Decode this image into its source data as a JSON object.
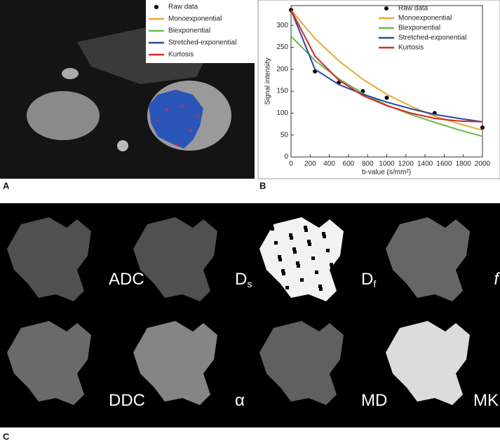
{
  "chart_data": {
    "type": "line",
    "xlabel": "b-value (s/mm²)",
    "ylabel": "Signal intensity",
    "xlim": [
      0,
      2000
    ],
    "ylim": [
      0,
      345
    ],
    "xticks": [
      0,
      200,
      400,
      600,
      800,
      1000,
      1200,
      1400,
      1600,
      1800,
      2000
    ],
    "yticks": [
      0,
      50,
      100,
      150,
      200,
      250,
      300
    ],
    "legend": "upper right",
    "series": [
      {
        "name": "Raw data",
        "color": "#000000",
        "mode": "markers",
        "x": [
          0,
          250,
          500,
          750,
          1000,
          1500,
          2000
        ],
        "values": [
          335,
          195,
          170,
          150,
          135,
          100,
          67
        ]
      },
      {
        "name": "Monoexponential",
        "color": "#e8a830",
        "mode": "lines",
        "x": [
          0,
          250,
          500,
          750,
          1000,
          1250,
          1500,
          1750,
          2000
        ],
        "values": [
          335,
          270,
          219,
          177,
          143,
          116,
          93,
          76,
          61
        ]
      },
      {
        "name": "Biexponential",
        "color": "#6ab84a",
        "mode": "lines",
        "x": [
          0,
          250,
          500,
          750,
          1000,
          1250,
          1500,
          1750,
          2000
        ],
        "values": [
          275,
          220,
          178,
          145,
          118,
          97,
          79,
          62,
          47
        ]
      },
      {
        "name": "Stretched-exponential",
        "color": "#2a4aa0",
        "mode": "lines",
        "x": [
          0,
          250,
          500,
          750,
          1000,
          1250,
          1500,
          1750,
          2000
        ],
        "values": [
          335,
          200,
          165,
          143,
          125,
          110,
          97,
          88,
          80
        ]
      },
      {
        "name": "Kurtosis",
        "color": "#d42a2a",
        "mode": "lines",
        "x": [
          0,
          250,
          500,
          750,
          1000,
          1250,
          1500,
          1750,
          2000
        ],
        "values": [
          335,
          230,
          175,
          140,
          117,
          100,
          88,
          82,
          80
        ]
      }
    ]
  },
  "panels": [
    "A",
    "B",
    "C"
  ],
  "maps": [
    {
      "main": "ADC",
      "sub": ""
    },
    {
      "main": "D",
      "sub": "s"
    },
    {
      "main": "D",
      "sub": "f"
    },
    {
      "main": "f",
      "sub": ""
    },
    {
      "main": "DDC",
      "sub": ""
    },
    {
      "main": "α",
      "sub": ""
    },
    {
      "main": "MD",
      "sub": ""
    },
    {
      "main": "MK",
      "sub": ""
    }
  ]
}
